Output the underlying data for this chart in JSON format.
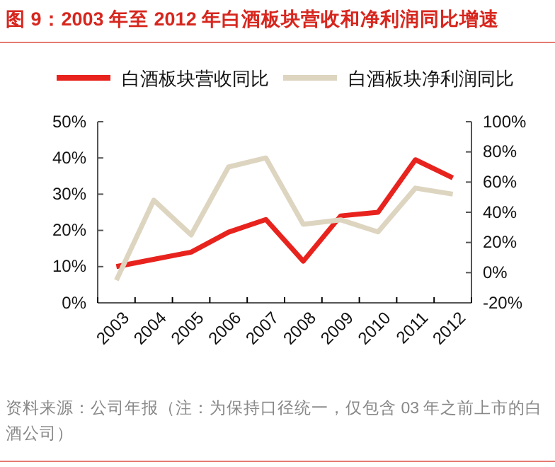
{
  "chart_data": {
    "type": "line",
    "title": "图 9：2003 年至 2012 年白酒板块营收和净利润同比增速",
    "categories": [
      "2003",
      "2004",
      "2005",
      "2006",
      "2007",
      "2008",
      "2009",
      "2010",
      "2011",
      "2012"
    ],
    "series": [
      {
        "name": "白酒板块营收同比",
        "color": "#e8231e",
        "values": [
          10,
          12,
          14,
          19.5,
          23,
          11.5,
          24,
          25,
          39.5,
          34.5
        ]
      },
      {
        "name": "白酒板块净利润同比",
        "color": "#ddd5c0",
        "axis": "y2",
        "values": [
          -5,
          48,
          25,
          70,
          76,
          32,
          35,
          27,
          56,
          52
        ]
      }
    ],
    "ylim": [
      0,
      50
    ],
    "yticks": [
      {
        "value": 0,
        "label": "0%"
      },
      {
        "value": 10,
        "label": "10%"
      },
      {
        "value": 20,
        "label": "20%"
      },
      {
        "value": 30,
        "label": "30%"
      },
      {
        "value": 40,
        "label": "40%"
      },
      {
        "value": 50,
        "label": "50%"
      }
    ],
    "y2lim": [
      -20,
      100
    ],
    "y2ticks": [
      {
        "value": -20,
        "label": "-20%"
      },
      {
        "value": 0,
        "label": "0%"
      },
      {
        "value": 20,
        "label": "20%"
      },
      {
        "value": 40,
        "label": "40%"
      },
      {
        "value": 60,
        "label": "60%"
      },
      {
        "value": 80,
        "label": "80%"
      },
      {
        "value": 100,
        "label": "100%"
      }
    ],
    "legend": "top",
    "grid": false,
    "line_style": "solid",
    "annotations": [
      "资料来源：公司年报（注：为保持口径统一，仅包含 03 年之前上市的白酒公司）"
    ]
  }
}
